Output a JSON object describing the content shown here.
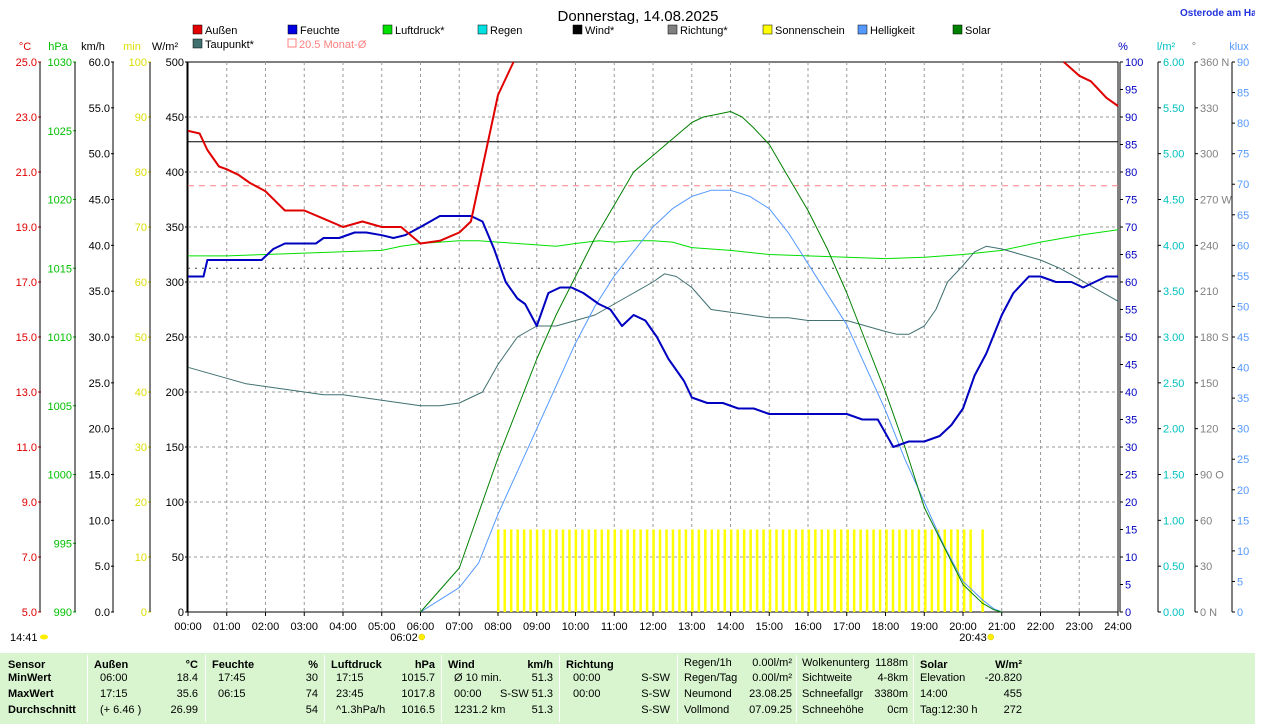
{
  "chart_data": {
    "type": "line",
    "title": "Donnerstag, 14.08.2025",
    "corner_label": "Osterode am Ha",
    "x_ticks": [
      "00:00",
      "01:00",
      "02:00",
      "03:00",
      "04:00",
      "05:00",
      "06:00",
      "07:00",
      "08:00",
      "09:00",
      "10:00",
      "11:00",
      "12:00",
      "13:00",
      "14:00",
      "15:00",
      "16:00",
      "17:00",
      "18:00",
      "19:00",
      "20:00",
      "21:00",
      "22:00",
      "23:00",
      "24:00"
    ],
    "sunrise": "06:02",
    "sunset": "20:43",
    "current_time": "14:41",
    "legend": [
      {
        "label": "Außen",
        "color": "#e00000"
      },
      {
        "label": "Feuchte",
        "color": "#0000e0"
      },
      {
        "label": "Luftdruck*",
        "color": "#00e000"
      },
      {
        "label": "Regen",
        "color": "#00e0e0"
      },
      {
        "label": "Wind*",
        "color": "#000000"
      },
      {
        "label": "Richtung*",
        "color": "#808080"
      },
      {
        "label": "Sonnenschein",
        "color": "#ffff00"
      },
      {
        "label": "Helligkeit",
        "color": "#5599ff"
      },
      {
        "label": "Solar",
        "color": "#008000"
      },
      {
        "label": "Taupunkt*",
        "color": "#407070"
      },
      {
        "label": "20.5 Monat-Ø",
        "color": "#ff8080"
      }
    ],
    "axes": {
      "temp": {
        "unit": "°C",
        "color": "#e00000",
        "ticks": [
          "25.0",
          "23.0",
          "21.0",
          "19.0",
          "17.0",
          "15.0",
          "13.0",
          "11.0",
          "9.0",
          "7.0",
          "5.0"
        ],
        "range": [
          5,
          25
        ]
      },
      "pressure": {
        "unit": "hPa",
        "color": "#00c000",
        "ticks": [
          "1030",
          "1025",
          "1020",
          "1015",
          "1010",
          "1005",
          "1000",
          "995",
          "990"
        ],
        "range": [
          990,
          1030
        ]
      },
      "wind": {
        "unit": "km/h",
        "color": "#000000",
        "ticks": [
          "60.0",
          "55.0",
          "50.0",
          "45.0",
          "40.0",
          "35.0",
          "30.0",
          "25.0",
          "20.0",
          "15.0",
          "10.0",
          "5.0",
          "0.0"
        ],
        "range": [
          0,
          60
        ]
      },
      "sunshine": {
        "unit": "min",
        "color": "#dddd00",
        "ticks": [
          "100",
          "90",
          "80",
          "70",
          "60",
          "50",
          "40",
          "30",
          "20",
          "10",
          "0"
        ],
        "range": [
          0,
          100
        ]
      },
      "solar": {
        "unit": "W/m²",
        "color": "#000000",
        "ticks": [
          "500",
          "450",
          "400",
          "350",
          "300",
          "250",
          "200",
          "150",
          "100",
          "50",
          "0"
        ],
        "range": [
          0,
          500
        ]
      },
      "humidity": {
        "unit": "%",
        "color": "#0000c0",
        "ticks": [
          "100",
          "95",
          "90",
          "85",
          "80",
          "75",
          "70",
          "65",
          "60",
          "55",
          "50",
          "45",
          "40",
          "35",
          "30",
          "25",
          "20",
          "15",
          "10",
          "5",
          "0"
        ],
        "range": [
          0,
          100
        ]
      },
      "rain": {
        "unit": "l/m²",
        "color": "#00c0c0",
        "ticks": [
          "6.00",
          "5.50",
          "5.00",
          "4.50",
          "4.00",
          "3.50",
          "3.00",
          "2.50",
          "2.00",
          "1.50",
          "1.00",
          "0.50",
          "0.00"
        ],
        "range": [
          0,
          6
        ]
      },
      "direction": {
        "unit": "°",
        "color": "#808080",
        "ticks": [
          "360 N",
          "330",
          "300",
          "270 W",
          "240",
          "210",
          "180 S",
          "150",
          "120",
          "90 O",
          "60",
          "30",
          "0 N"
        ],
        "range": [
          0,
          360
        ]
      },
      "brightness": {
        "unit": "klux",
        "color": "#5599ff",
        "ticks": [
          "90",
          "85",
          "80",
          "75",
          "70",
          "65",
          "60",
          "55",
          "50",
          "45",
          "40",
          "35",
          "30",
          "25",
          "20",
          "15",
          "10",
          "5",
          "0"
        ],
        "range": [
          0,
          90
        ]
      }
    },
    "series": [
      {
        "name": "Außen",
        "axis": "temp",
        "color": "#e00000",
        "width": 2,
        "x": [
          0,
          0.3,
          0.5,
          0.8,
          1.0,
          1.3,
          1.6,
          2.0,
          2.5,
          3.0,
          3.5,
          4.0,
          4.5,
          5.0,
          5.5,
          6.0,
          6.5,
          7.0,
          7.3,
          8.0,
          8.4
        ],
        "y": [
          22.5,
          22.4,
          21.8,
          21.2,
          21.1,
          20.9,
          20.6,
          20.3,
          19.6,
          19.6,
          19.3,
          19.0,
          19.2,
          19.0,
          19.0,
          18.4,
          18.5,
          18.8,
          19.2,
          23.8,
          25.6
        ]
      },
      {
        "name": "Außen (Abend)",
        "axis": "temp",
        "color": "#e00000",
        "width": 2,
        "x": [
          22.6,
          23.0,
          23.3,
          23.7,
          24.0
        ],
        "y": [
          25.6,
          24.5,
          24.3,
          23.7,
          23.4
        ]
      },
      {
        "name": "Feuchte",
        "axis": "humidity",
        "color": "#0000c0",
        "width": 2,
        "x": [
          0,
          0.4,
          0.5,
          1.0,
          1.5,
          1.9,
          2.2,
          2.5,
          3.0,
          3.3,
          3.5,
          3.9,
          4.3,
          4.6,
          5.0,
          5.3,
          5.6,
          6.0,
          6.5,
          7.0,
          7.3,
          7.6,
          7.9,
          8.2,
          8.5,
          8.7,
          9.0,
          9.3,
          9.6,
          9.9,
          10.2,
          10.6,
          10.9,
          11.2,
          11.5,
          11.8,
          12.1,
          12.4,
          12.8,
          13.0,
          13.4,
          13.8,
          14.2,
          14.6,
          15.0,
          15.5,
          16.0,
          16.5,
          17.0,
          17.4,
          17.8,
          18.2,
          18.6,
          19.0,
          19.4,
          19.7,
          20.0,
          20.3,
          20.6,
          21.0,
          21.3,
          21.7,
          22.0,
          22.4,
          22.8,
          23.1,
          23.4,
          23.7,
          24.0
        ],
        "y": [
          61,
          61,
          64,
          64,
          64,
          64,
          66,
          67,
          67,
          67,
          68,
          68,
          69,
          69,
          68.5,
          68,
          68.5,
          70,
          72,
          72,
          72,
          71,
          66,
          60,
          57,
          56,
          52,
          58,
          59,
          59,
          58,
          56,
          55,
          52,
          54,
          53,
          50,
          46,
          42,
          39,
          38,
          38,
          37,
          37,
          36,
          36,
          36,
          36,
          36,
          35,
          35,
          30,
          31,
          31,
          32,
          34,
          37,
          43,
          47,
          54,
          58,
          61,
          61,
          60,
          60,
          59,
          60,
          61,
          61
        ]
      },
      {
        "name": "Luftdruck",
        "axis": "pressure",
        "color": "#00e000",
        "width": 1,
        "x": [
          0,
          1,
          2,
          3,
          4,
          5,
          5.5,
          6,
          6.5,
          7,
          7.5,
          8,
          8.5,
          9,
          9.5,
          10,
          10.3,
          10.6,
          11,
          11.5,
          12,
          12.5,
          13,
          14,
          15,
          16,
          17,
          18,
          19,
          20,
          21,
          22,
          23,
          24
        ],
        "y": [
          1015.9,
          1015.9,
          1016.0,
          1016.1,
          1016.2,
          1016.3,
          1016.6,
          1016.8,
          1016.9,
          1017.0,
          1017.0,
          1016.9,
          1016.8,
          1016.7,
          1016.6,
          1016.8,
          1016.9,
          1017.0,
          1016.9,
          1017.0,
          1017.0,
          1016.9,
          1016.5,
          1016.3,
          1016.0,
          1015.9,
          1015.8,
          1015.7,
          1015.8,
          1016.0,
          1016.3,
          1016.9,
          1017.4,
          1017.8
        ]
      },
      {
        "name": "Taupunkt",
        "axis": "temp",
        "color": "#407070",
        "width": 1,
        "x": [
          0,
          0.5,
          1,
          1.5,
          2,
          2.5,
          3,
          3.5,
          4,
          4.5,
          5,
          5.5,
          6,
          6.5,
          7,
          7.3,
          7.6,
          8,
          8.5,
          9,
          9.5,
          10,
          10.5,
          11,
          11.5,
          12,
          12.3,
          12.6,
          13,
          13.5,
          14,
          14.5,
          15,
          15.5,
          16,
          16.5,
          17,
          17.5,
          18,
          18.3,
          18.6,
          19,
          19.3,
          19.6,
          20,
          20.3,
          20.6,
          21,
          21.5,
          22,
          22.5,
          23,
          23.5,
          24
        ],
        "y": [
          13.9,
          13.7,
          13.5,
          13.3,
          13.2,
          13.1,
          13.0,
          12.9,
          12.9,
          12.8,
          12.7,
          12.6,
          12.5,
          12.5,
          12.6,
          12.8,
          13.0,
          14.0,
          15.0,
          15.4,
          15.4,
          15.6,
          15.8,
          16.2,
          16.6,
          17.0,
          17.3,
          17.2,
          16.8,
          16.0,
          15.9,
          15.8,
          15.7,
          15.7,
          15.6,
          15.6,
          15.6,
          15.4,
          15.2,
          15.1,
          15.1,
          15.4,
          16.0,
          17.0,
          17.6,
          18.1,
          18.3,
          18.2,
          18.0,
          17.8,
          17.5,
          17.1,
          16.7,
          16.3
        ]
      },
      {
        "name": "Helligkeit",
        "axis": "brightness",
        "color": "#5599ff",
        "width": 1,
        "x": [
          6.0,
          6.5,
          7.0,
          7.5,
          8.0,
          8.5,
          9.0,
          9.5,
          10,
          10.5,
          11,
          11.5,
          12,
          12.5,
          13,
          13.5,
          14,
          14.5,
          15,
          15.5,
          16,
          16.5,
          17,
          17.5,
          18,
          18.5,
          19,
          19.5,
          20,
          20.5,
          20.8,
          21.0
        ],
        "y": [
          0,
          2,
          4,
          8,
          16,
          23,
          30,
          37,
          44,
          50,
          55,
          59,
          63,
          66,
          68,
          69,
          69,
          68,
          66,
          62,
          57,
          52,
          47,
          40,
          33,
          25,
          18,
          11,
          5,
          2,
          0.5,
          0
        ]
      },
      {
        "name": "Solar",
        "axis": "solar",
        "color": "#008000",
        "width": 1,
        "x": [
          6.0,
          6.5,
          7.0,
          7.3,
          7.6,
          8.0,
          8.5,
          9.0,
          9.5,
          10,
          10.5,
          11,
          11.5,
          12,
          12.5,
          13,
          13.3,
          13.6,
          14,
          14.3,
          14.6,
          15,
          15.5,
          16,
          16.5,
          17,
          17.5,
          18,
          18.5,
          19,
          19.5,
          20,
          20.5,
          20.8,
          21.0
        ],
        "y": [
          0,
          20,
          40,
          70,
          100,
          140,
          185,
          230,
          270,
          305,
          340,
          370,
          400,
          415,
          430,
          445,
          450,
          452,
          455,
          450,
          440,
          425,
          395,
          365,
          330,
          290,
          245,
          200,
          150,
          95,
          60,
          25,
          8,
          2,
          0
        ]
      },
      {
        "name": "Wind max",
        "axis": "wind",
        "color": "#000000",
        "width": 1,
        "x": [
          0,
          24
        ],
        "y": [
          51.3,
          51.3
        ]
      },
      {
        "name": "Richtung",
        "axis": "direction",
        "color": "#404040",
        "width": 1,
        "dotted": true,
        "x": [
          0,
          24
        ],
        "y": [
          225,
          225
        ]
      },
      {
        "name": "20.5 Monat-Ø",
        "axis": "temp",
        "color": "#ff8080",
        "width": 1,
        "dashed": true,
        "x": [
          0,
          24
        ],
        "y": [
          20.5,
          20.5
        ]
      }
    ],
    "sunshine_bars": {
      "axis": "sunshine",
      "color": "#ffff00",
      "value": 15,
      "start": 8.0,
      "end": 20.2,
      "step": 0.167,
      "extra": [
        20.5
      ]
    }
  },
  "stats": {
    "headers": {
      "sensor": "Sensor",
      "aussen": "Außen",
      "aussen_unit": "°C",
      "feuchte": "Feuchte",
      "feuchte_unit": "%",
      "luftdruck": "Luftdruck",
      "luftdruck_unit": "hPa",
      "wind": "Wind",
      "wind_unit": "km/h",
      "richtung": "Richtung",
      "solar": "Solar",
      "solar_unit": "W/m²"
    },
    "row_labels": [
      "MinWert",
      "MaxWert",
      "Durchschnitt"
    ],
    "aussen": [
      [
        "06:00",
        "18.4"
      ],
      [
        "17:15",
        "35.6"
      ],
      [
        "(+ 6.46 )",
        "26.99"
      ]
    ],
    "feuchte": [
      [
        "17:45",
        "30"
      ],
      [
        "06:15",
        "74"
      ],
      [
        "",
        "54"
      ]
    ],
    "luftdruck": [
      [
        "17:15",
        "1015.7"
      ],
      [
        "23:45",
        "1017.8"
      ],
      [
        "^1.3hPa/h",
        "1016.5"
      ]
    ],
    "wind": [
      [
        "Ø 10 min.",
        "",
        "51.3"
      ],
      [
        "00:00",
        "S-SW",
        "51.3"
      ],
      [
        "1231.2 km",
        "",
        "51.3"
      ]
    ],
    "richtung": [
      [
        "00:00",
        "S-SW"
      ],
      [
        "00:00",
        "S-SW"
      ],
      [
        "",
        "S-SW"
      ]
    ],
    "rain": [
      [
        "Regen/1h",
        "0.00l/m²"
      ],
      [
        "Regen/Tag",
        "0.00l/m²"
      ],
      [
        "Neumond",
        "23.08.25"
      ],
      [
        "Vollmond",
        "07.09.25"
      ]
    ],
    "clouds": [
      [
        "Wolkenunterg",
        "1188m"
      ],
      [
        "Sichtweite",
        "4-8km"
      ],
      [
        "Schneefallgr",
        "3380m"
      ],
      [
        "Schneehöhe",
        "0cm"
      ]
    ],
    "solar": [
      [
        "Elevation",
        "-20.820"
      ],
      [
        "14:00",
        "455"
      ],
      [
        "Tag:12:30 h",
        "272"
      ]
    ]
  }
}
